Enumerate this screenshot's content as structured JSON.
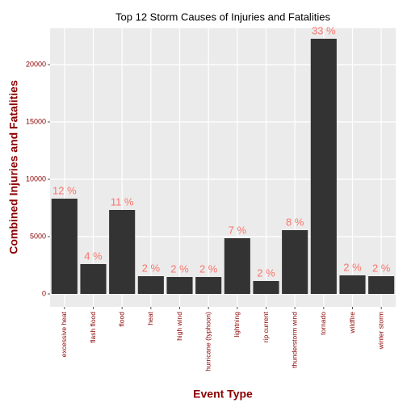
{
  "chart_data": {
    "type": "bar",
    "title": "Top 12 Storm Causes of Injuries and Fatalities",
    "x_label": "Event Type",
    "y_label": "Combined Injuries and Fatalities",
    "categories": [
      "excessive heat",
      "flash flood",
      "flood",
      "heat",
      "high wind",
      "hurricane (typhoon)",
      "lightning",
      "rip current",
      "thunderstorm wind",
      "tornado",
      "wildfire",
      "winter storm"
    ],
    "values": [
      8310,
      2606,
      7324,
      1549,
      1479,
      1479,
      4859,
      1127,
      5563,
      22254,
      1620,
      1549
    ],
    "annotations": [
      "12 %",
      "4 %",
      "11 %",
      "2 %",
      "2 %",
      "2 %",
      "7 %",
      "2 %",
      "8 %",
      "33 %",
      "2 %",
      "2 %"
    ],
    "color": "#333333",
    "annotation_color": "#F8766D",
    "ylim": [
      -1127,
      23169
    ],
    "yticks": [
      0,
      5000,
      10000,
      15000,
      20000
    ],
    "grid": true
  }
}
